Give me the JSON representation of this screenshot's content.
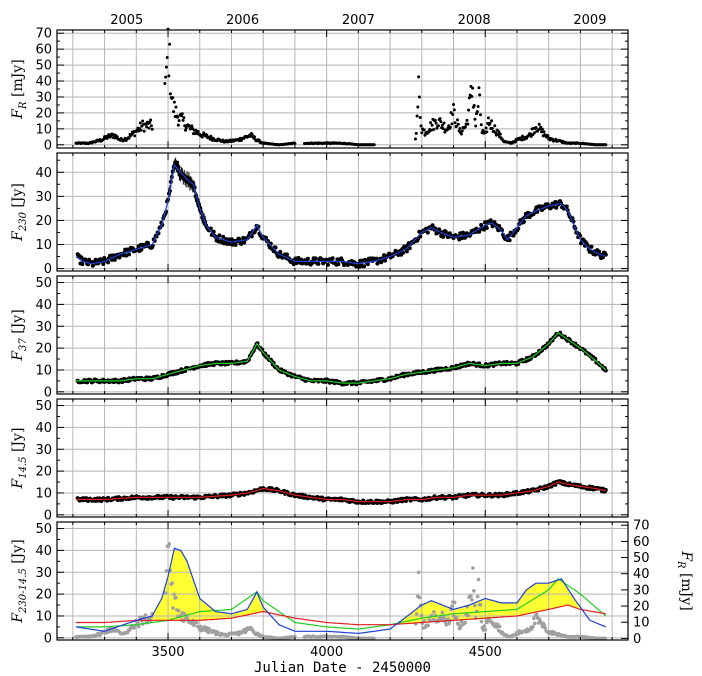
{
  "figure": {
    "xlabel": "Julian Date - 2450000",
    "top_axis_years": [
      "2005",
      "2006",
      "2007",
      "2008",
      "2009"
    ],
    "xlim": [
      3150,
      4950
    ],
    "xticks": [
      3500,
      4000,
      4500
    ]
  },
  "colors": {
    "points": "#000000",
    "fit_230": "#1f3fd6",
    "fit_37": "#22cc22",
    "fit_14": "#e02020",
    "fill": "#ffff33",
    "grey_points": "#a0a0a0",
    "grid": "#b5b5b5"
  },
  "chart_data": [
    {
      "type": "scatter",
      "ylabel": "F_R [mJy]",
      "ylim": [
        -2,
        72
      ],
      "yticks": [
        0,
        10,
        20,
        30,
        40,
        50,
        60,
        70
      ],
      "series": [
        {
          "x": [
            3225,
            3250,
            3270,
            3290,
            3310,
            3330,
            3350,
            3370,
            3390,
            3420,
            3450,
            3495,
            3500,
            3505,
            3510,
            3515,
            3520,
            3530,
            3540,
            3550,
            3560,
            3570,
            3590,
            3610,
            3640,
            3680,
            3720,
            3760,
            3780,
            3800,
            3850,
            3900,
            3950,
            4000,
            4050,
            4100,
            4150,
            4200,
            4280,
            4285,
            4290,
            4295,
            4300,
            4310,
            4330,
            4350,
            4380,
            4400,
            4420,
            4440,
            4460,
            4470,
            4480,
            4490,
            4500,
            4510,
            4530,
            4560,
            4580,
            4600,
            4640,
            4660,
            4680,
            4700,
            4720,
            4760,
            4800,
            4850,
            4880
          ],
          "y": [
            1,
            1,
            2,
            3,
            5,
            6,
            3,
            4,
            7,
            12,
            12,
            40,
            65,
            50,
            35,
            25,
            22,
            18,
            16,
            14,
            12,
            10,
            8,
            6,
            4,
            2,
            3,
            6,
            3,
            1,
            0,
            1,
            1,
            1,
            1,
            0,
            0,
            0,
            5,
            15,
            35,
            20,
            10,
            8,
            12,
            15,
            10,
            20,
            8,
            12,
            36,
            12,
            30,
            8,
            6,
            15,
            10,
            2,
            1,
            3,
            6,
            12,
            8,
            4,
            3,
            1,
            1,
            0,
            0
          ]
        }
      ]
    },
    {
      "type": "line",
      "ylabel": "F_230 [Jy]",
      "ylim": [
        -1,
        48
      ],
      "yticks": [
        0,
        10,
        20,
        30,
        40
      ],
      "series": [
        {
          "x": [
            3210,
            3230,
            3260,
            3300,
            3350,
            3400,
            3450,
            3480,
            3500,
            3520,
            3540,
            3560,
            3580,
            3600,
            3620,
            3650,
            3700,
            3750,
            3780,
            3800,
            3850,
            3900,
            3950,
            4000,
            4050,
            4100,
            4150,
            4200,
            4250,
            4300,
            4330,
            4360,
            4400,
            4450,
            4500,
            4520,
            4550,
            4570,
            4600,
            4630,
            4660,
            4700,
            4740,
            4760,
            4780,
            4800,
            4830,
            4860,
            4880
          ],
          "y": [
            5,
            3,
            2,
            3,
            6,
            8,
            10,
            18,
            28,
            43,
            40,
            37,
            35,
            25,
            18,
            13,
            11,
            12,
            18,
            13,
            6,
            3,
            3,
            3,
            3,
            2,
            3,
            5,
            8,
            15,
            17,
            15,
            13,
            14,
            18,
            19,
            16,
            12,
            17,
            22,
            24,
            26,
            27,
            24,
            18,
            12,
            8,
            6,
            5
          ]
        }
      ]
    },
    {
      "type": "line",
      "ylabel": "F_37 [Jy]",
      "ylim": [
        -1,
        53
      ],
      "yticks": [
        0,
        10,
        20,
        30,
        40,
        50
      ],
      "series": [
        {
          "x": [
            3210,
            3250,
            3300,
            3350,
            3400,
            3450,
            3500,
            3550,
            3600,
            3650,
            3700,
            3750,
            3780,
            3800,
            3850,
            3900,
            3950,
            4000,
            4050,
            4100,
            4150,
            4200,
            4250,
            4300,
            4350,
            4400,
            4450,
            4500,
            4550,
            4600,
            4650,
            4700,
            4730,
            4760,
            4800,
            4850,
            4880
          ],
          "y": [
            5,
            5,
            5,
            5,
            6,
            6,
            8,
            10,
            12,
            13,
            13,
            14,
            22,
            18,
            10,
            7,
            5,
            5,
            4,
            4,
            5,
            6,
            8,
            9,
            10,
            11,
            13,
            12,
            13,
            13,
            16,
            22,
            27,
            24,
            20,
            14,
            10
          ]
        }
      ]
    },
    {
      "type": "line",
      "ylabel": "F_14.5 [Jy]",
      "ylim": [
        -1,
        53
      ],
      "yticks": [
        0,
        10,
        20,
        30,
        40,
        50
      ],
      "series": [
        {
          "x": [
            3210,
            3300,
            3400,
            3500,
            3600,
            3700,
            3750,
            3800,
            3850,
            3900,
            3950,
            4000,
            4050,
            4100,
            4150,
            4200,
            4250,
            4300,
            4350,
            4400,
            4450,
            4500,
            4550,
            4600,
            4650,
            4700,
            4730,
            4760,
            4800,
            4850,
            4880
          ],
          "y": [
            7,
            7,
            8,
            8,
            8,
            9,
            10,
            12,
            11,
            9,
            8,
            7,
            7,
            6,
            6,
            6,
            7,
            7,
            8,
            8,
            9,
            9,
            9,
            10,
            11,
            13,
            15,
            14,
            13,
            12,
            11
          ]
        }
      ]
    },
    {
      "type": "line",
      "ylabel": "F_230-14.5 [Jy]",
      "ylabel_right": "F_R [mJy]",
      "ylim": [
        -1,
        53
      ],
      "ylim_right": [
        -1,
        72
      ],
      "yticks": [
        0,
        10,
        20,
        30,
        40,
        50
      ],
      "yticks_right": [
        0,
        10,
        20,
        30,
        40,
        50,
        60,
        70
      ],
      "series": [
        {
          "name": "",
          "x": [
            3210,
            3300,
            3400,
            3450,
            3480,
            3500,
            3520,
            3540,
            3560,
            3600,
            3650,
            3700,
            3750,
            3780,
            3800,
            3850,
            3900,
            3950,
            4000,
            4100,
            4200,
            4300,
            4330,
            4400,
            4450,
            4500,
            4550,
            4600,
            4630,
            4660,
            4700,
            4740,
            4780,
            4830,
            4880
          ],
          "y": [
            5,
            3,
            8,
            10,
            18,
            28,
            41,
            40,
            35,
            18,
            12,
            11,
            13,
            21,
            14,
            6,
            3,
            3,
            3,
            2,
            4,
            15,
            17,
            13,
            15,
            18,
            16,
            16,
            22,
            25,
            25,
            27,
            18,
            8,
            5
          ]
        },
        {
          "name": "",
          "x": [
            3210,
            3300,
            3400,
            3500,
            3600,
            3700,
            3780,
            3800,
            3900,
            4000,
            4100,
            4200,
            4300,
            4400,
            4500,
            4600,
            4700,
            4730,
            4800,
            4880
          ],
          "y": [
            5,
            5,
            6,
            8,
            12,
            13,
            21,
            17,
            7,
            5,
            4,
            6,
            9,
            11,
            12,
            13,
            22,
            27,
            20,
            10
          ]
        },
        {
          "name": "",
          "x": [
            3210,
            3300,
            3400,
            3500,
            3600,
            3700,
            3800,
            3900,
            4000,
            4100,
            4200,
            4300,
            4400,
            4500,
            4600,
            4700,
            4760,
            4800,
            4880
          ],
          "y": [
            7,
            7,
            8,
            8,
            8,
            9,
            12,
            9,
            7,
            6,
            6,
            7,
            8,
            9,
            10,
            13,
            15,
            13,
            11
          ]
        }
      ]
    }
  ]
}
